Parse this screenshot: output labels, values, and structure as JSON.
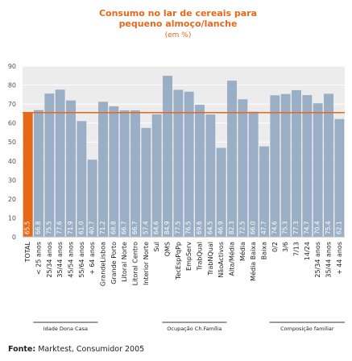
{
  "chart_data": {
    "type": "bar",
    "title": "Consumo no lar de cereais para pequeno almoço/lanche",
    "title_lines": [
      "Consumo no lar de cereais para",
      "pequeno almoço/lanche"
    ],
    "subtitle": "(em %)",
    "ylim": [
      0,
      90
    ],
    "yticks": [
      0,
      10,
      20,
      30,
      40,
      50,
      60,
      70,
      80,
      90
    ],
    "grid": true,
    "reference_line": 65.5,
    "categories": [
      "TOTAL",
      "< 25 anos",
      "25/34 anos",
      "35/44 anos",
      "45/54 anos",
      "55/64 anos",
      "+ 64 anos",
      "GrandeLisboa",
      "Grande Porto",
      "Litoral Norte",
      "Litoral Centro",
      "Interior Norte",
      "Sul",
      "QMS",
      "TecEspPqPp",
      "EmpServ",
      "TrabQual",
      "TrabNQual",
      "NãoActivos",
      "Alta/Média",
      "Média",
      "Média Baixa",
      "Baixa",
      "0/2",
      "3/6",
      "7/13",
      "14/24",
      "25/34 anos",
      "35/44 anos",
      "+ 44 anos"
    ],
    "values": [
      65.5,
      66.8,
      75.5,
      77.6,
      71.9,
      61.0,
      40.7,
      71.2,
      68.8,
      66.7,
      66.7,
      57.4,
      64.6,
      84.9,
      77.5,
      76.5,
      69.6,
      64.5,
      46.9,
      82.3,
      72.5,
      66.0,
      47.7,
      74.6,
      75.3,
      77.3,
      74.7,
      70.4,
      75.4,
      62.1
    ],
    "groups": [
      {
        "label": "Idade Dona Casa",
        "start": 1,
        "end": 6
      },
      {
        "label": "Ocupação Ch.Família",
        "start": 13,
        "end": 18
      },
      {
        "label": "Composição familiar",
        "start": 23,
        "end": 29
      }
    ],
    "source_label": "Fonte:",
    "source_text": " Marktest, Consumidor 2005"
  },
  "colors": {
    "highlight_bar": "#e8681a",
    "bar": "#9aafc5",
    "reference_line": "#e8681a",
    "plot_background": "#ececec",
    "grid": "#ffffff",
    "title": "#e8681a"
  }
}
